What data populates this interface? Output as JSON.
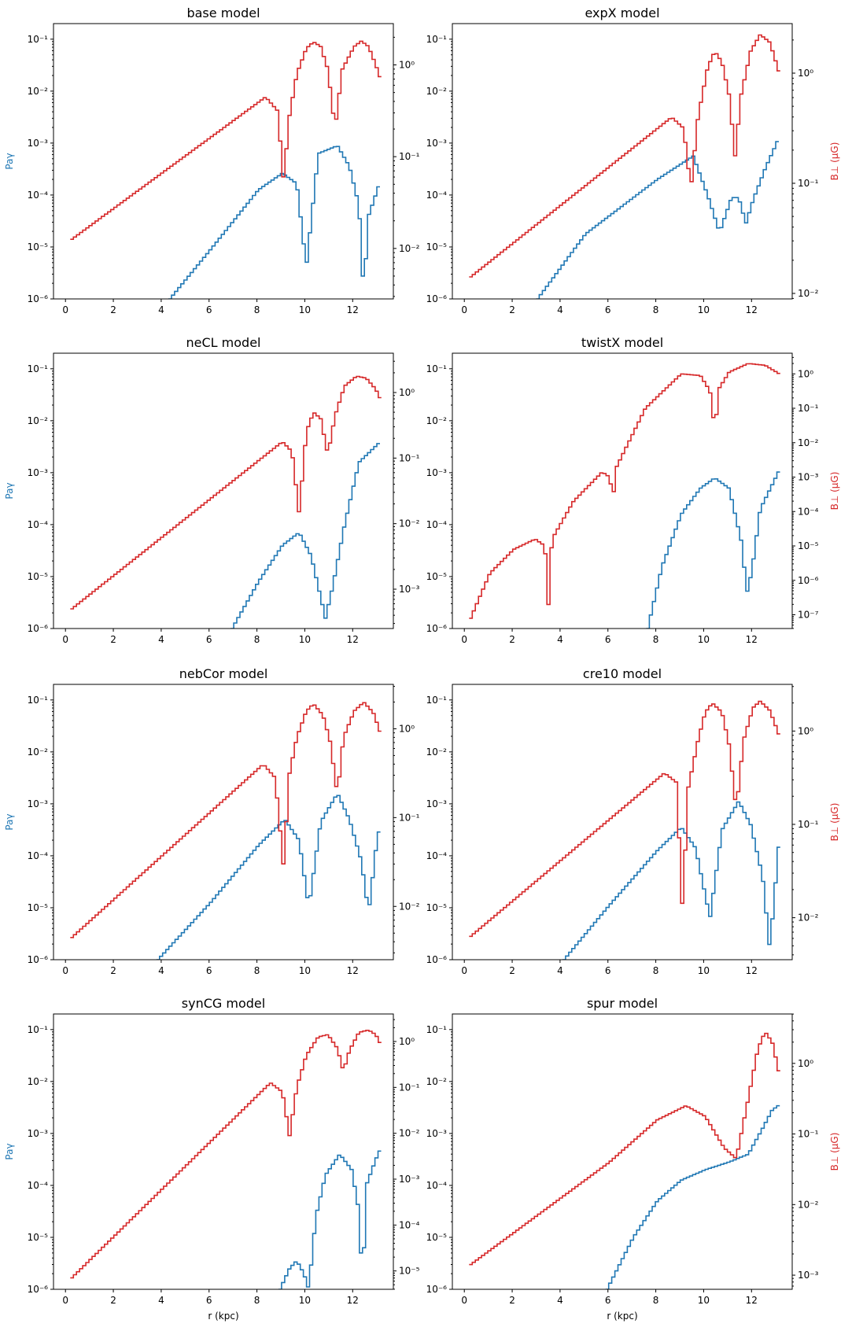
{
  "figure": {
    "xlabel": "r (kpc)",
    "left_ylabel": "P_aγ",
    "right_ylabel": "B_⊥ (μG)",
    "left_color": "#1f77b4",
    "right_color": "#d62728"
  },
  "chart_data": [
    {
      "type": "line",
      "title": "base model",
      "xlabel": "",
      "ylabel": "Paγ",
      "y2label": "",
      "xlim": [
        -0.5,
        13.7
      ],
      "xticks": [
        0,
        2,
        4,
        6,
        8,
        10,
        12
      ],
      "ylim": [
        -6,
        -0.7
      ],
      "yscale": "log",
      "yticks": [
        -6,
        -5,
        -4,
        -3,
        -2,
        -1
      ],
      "y2lim": [
        -2.55,
        0.45
      ],
      "y2scale": "log",
      "y2ticks": [
        -2,
        -1,
        0
      ],
      "series": [
        {
          "axis": "left",
          "color": "#1f77b4",
          "x": [
            4.3,
            6,
            8,
            9.0,
            9.6,
            10,
            10.5,
            11.3,
            11.8,
            12.2,
            12.4,
            12.6,
            13.1
          ],
          "y": [
            -6,
            -5.05,
            -3.9,
            -3.58,
            -3.78,
            -5.38,
            -3.2,
            -3.05,
            -3.45,
            -4.2,
            -5.9,
            -4.4,
            -3.72
          ]
        },
        {
          "axis": "right",
          "color": "#d62728",
          "x": [
            0.2,
            8.3,
            8.8,
            9.05,
            9.3,
            9.6,
            10.0,
            10.3,
            10.6,
            10.9,
            11.2,
            11.5,
            12.0,
            12.3,
            12.6,
            12.9,
            13.1
          ],
          "y": [
            -1.9,
            -0.35,
            -0.5,
            -1.25,
            -0.55,
            -0.1,
            0.18,
            0.25,
            0.2,
            -0.05,
            -0.7,
            -0.05,
            0.2,
            0.26,
            0.2,
            0.0,
            -0.15
          ]
        }
      ]
    },
    {
      "type": "line",
      "title": "expX model",
      "xlabel": "",
      "ylabel": "",
      "y2label": "B⊥ (μG)",
      "xlim": [
        -0.5,
        13.7
      ],
      "xticks": [
        0,
        2,
        4,
        6,
        8,
        10,
        12
      ],
      "ylim": [
        -6,
        -0.7
      ],
      "yscale": "log",
      "yticks": [
        -6,
        -5,
        -4,
        -3,
        -2,
        -1
      ],
      "y2lim": [
        -2.05,
        0.45
      ],
      "y2scale": "log",
      "y2ticks": [
        -2,
        -1,
        0
      ],
      "series": [
        {
          "axis": "left",
          "color": "#1f77b4",
          "x": [
            3.0,
            5,
            8,
            9.5,
            10.1,
            10.6,
            11.1,
            11.4,
            11.7,
            12.0,
            12.5,
            13.1
          ],
          "y": [
            -6,
            -4.75,
            -3.7,
            -3.25,
            -4.0,
            -4.72,
            -4.05,
            -4.05,
            -4.55,
            -4.1,
            -3.5,
            -2.88
          ]
        },
        {
          "axis": "right",
          "color": "#d62728",
          "x": [
            0.2,
            8.6,
            9.1,
            9.4,
            9.7,
            10.1,
            10.4,
            10.7,
            11.0,
            11.25,
            11.5,
            11.9,
            12.3,
            12.7,
            13.1
          ],
          "y": [
            -1.85,
            -0.4,
            -0.5,
            -1.05,
            -0.4,
            0.05,
            0.2,
            0.1,
            -0.2,
            -0.75,
            -0.2,
            0.2,
            0.35,
            0.28,
            0.0
          ]
        }
      ]
    },
    {
      "type": "line",
      "title": "neCL model",
      "xlabel": "",
      "ylabel": "Paγ",
      "y2label": "",
      "xlim": [
        -0.5,
        13.7
      ],
      "xticks": [
        0,
        2,
        4,
        6,
        8,
        10,
        12
      ],
      "ylim": [
        -6,
        -0.7
      ],
      "yscale": "log",
      "yticks": [
        -6,
        -5,
        -4,
        -3,
        -2,
        -1
      ],
      "y2lim": [
        -3.6,
        0.6
      ],
      "y2scale": "log",
      "y2ticks": [
        -3,
        -2,
        -1,
        0
      ],
      "series": [
        {
          "axis": "left",
          "color": "#1f77b4",
          "x": [
            6.9,
            8,
            9,
            9.7,
            10.2,
            10.8,
            11.1,
            11.6,
            12.2,
            13.1
          ],
          "y": [
            -6,
            -5.1,
            -4.4,
            -4.15,
            -4.6,
            -5.8,
            -5.2,
            -4.0,
            -2.8,
            -2.4
          ]
        },
        {
          "axis": "right",
          "color": "#d62728",
          "x": [
            0.2,
            9.0,
            9.4,
            9.7,
            10.0,
            10.3,
            10.6,
            10.9,
            11.2,
            11.6,
            12.1,
            12.5,
            12.9,
            13.1
          ],
          "y": [
            -3.3,
            -0.75,
            -0.9,
            -1.85,
            -0.6,
            -0.3,
            -0.4,
            -0.95,
            -0.35,
            0.1,
            0.25,
            0.22,
            0.05,
            -0.1
          ]
        }
      ]
    },
    {
      "type": "line",
      "title": "twistX model",
      "xlabel": "",
      "ylabel": "",
      "y2label": "B⊥ (μG)",
      "xlim": [
        -0.5,
        13.7
      ],
      "xticks": [
        0,
        2,
        4,
        6,
        8,
        10,
        12
      ],
      "ylim": [
        -6,
        -0.7
      ],
      "yscale": "log",
      "yticks": [
        -6,
        -5,
        -4,
        -3,
        -2,
        -1
      ],
      "y2lim": [
        -7.4,
        0.6
      ],
      "y2scale": "log",
      "y2ticks": [
        -7,
        -6,
        -5,
        -4,
        -3,
        -2,
        -1,
        0
      ],
      "series": [
        {
          "axis": "left",
          "color": "#1f77b4",
          "x": [
            7.6,
            8.2,
            9,
            9.8,
            10.4,
            11.0,
            11.5,
            11.75,
            11.95,
            12.3,
            13.1
          ],
          "y": [
            -6,
            -4.8,
            -3.8,
            -3.3,
            -3.1,
            -3.3,
            -4.3,
            -5.3,
            -4.9,
            -3.7,
            -2.95
          ]
        },
        {
          "axis": "right",
          "color": "#d62728",
          "x": [
            0.2,
            1.0,
            2.0,
            2.9,
            3.3,
            3.45,
            3.6,
            4.5,
            5.7,
            6.0,
            6.15,
            6.3,
            7.5,
            9.0,
            9.8,
            10.2,
            10.4,
            10.6,
            11.0,
            11.8,
            12.5,
            13.1
          ],
          "y": [
            -7.1,
            -5.8,
            -5.1,
            -4.8,
            -5.0,
            -6.7,
            -4.8,
            -3.7,
            -2.85,
            -3.0,
            -3.6,
            -2.7,
            -1.0,
            0.0,
            -0.05,
            -0.5,
            -1.6,
            -0.4,
            0.05,
            0.3,
            0.25,
            0.0
          ]
        }
      ]
    },
    {
      "type": "line",
      "title": "nebCor model",
      "xlabel": "",
      "ylabel": "Paγ",
      "y2label": "",
      "xlim": [
        -0.5,
        13.7
      ],
      "xticks": [
        0,
        2,
        4,
        6,
        8,
        10,
        12
      ],
      "ylim": [
        -6,
        -0.7
      ],
      "yscale": "log",
      "yticks": [
        -6,
        -5,
        -4,
        -3,
        -2,
        -1
      ],
      "y2lim": [
        -2.6,
        0.5
      ],
      "y2scale": "log",
      "y2ticks": [
        -2,
        -1,
        0
      ],
      "series": [
        {
          "axis": "left",
          "color": "#1f77b4",
          "x": [
            3.8,
            6,
            8,
            9.1,
            9.7,
            10.1,
            10.6,
            11.3,
            11.8,
            12.3,
            12.6,
            12.9,
            13.1
          ],
          "y": [
            -6,
            -4.9,
            -3.8,
            -3.3,
            -3.7,
            -5.0,
            -3.35,
            -2.8,
            -3.3,
            -4.1,
            -5.1,
            -3.9,
            -3.35
          ]
        },
        {
          "axis": "right",
          "color": "#d62728",
          "x": [
            0.2,
            8.2,
            8.7,
            9.05,
            9.3,
            9.6,
            10.0,
            10.3,
            10.7,
            11.0,
            11.3,
            11.55,
            12.0,
            12.4,
            12.8,
            13.1
          ],
          "y": [
            -2.35,
            -0.4,
            -0.55,
            -1.55,
            -0.5,
            -0.1,
            0.2,
            0.28,
            0.15,
            -0.15,
            -0.75,
            -0.1,
            0.2,
            0.3,
            0.18,
            -0.05
          ]
        }
      ]
    },
    {
      "type": "line",
      "title": "cre10 model",
      "xlabel": "",
      "ylabel": "",
      "y2label": "B⊥ (μG)",
      "xlim": [
        -0.5,
        13.7
      ],
      "xticks": [
        0,
        2,
        4,
        6,
        8,
        10,
        12
      ],
      "ylim": [
        -6,
        -0.7
      ],
      "yscale": "log",
      "yticks": [
        -6,
        -5,
        -4,
        -3,
        -2,
        -1
      ],
      "y2lim": [
        -2.45,
        0.5
      ],
      "y2scale": "log",
      "y2ticks": [
        -2,
        -1,
        0
      ],
      "series": [
        {
          "axis": "left",
          "color": "#1f77b4",
          "x": [
            4.1,
            6,
            8,
            9.0,
            9.6,
            10.2,
            10.7,
            11.4,
            11.9,
            12.4,
            12.7,
            13.0,
            13.1
          ],
          "y": [
            -6,
            -4.95,
            -3.9,
            -3.45,
            -3.85,
            -5.2,
            -3.5,
            -2.95,
            -3.4,
            -4.4,
            -5.8,
            -4.2,
            -3.68
          ]
        },
        {
          "axis": "right",
          "color": "#d62728",
          "x": [
            0.2,
            8.3,
            8.8,
            9.05,
            9.3,
            9.7,
            10.0,
            10.3,
            10.7,
            11.0,
            11.3,
            11.6,
            12.0,
            12.3,
            12.7,
            13.1
          ],
          "y": [
            -2.2,
            -0.45,
            -0.55,
            -1.9,
            -0.6,
            -0.1,
            0.2,
            0.3,
            0.2,
            -0.15,
            -0.85,
            -0.1,
            0.25,
            0.32,
            0.22,
            -0.05
          ]
        }
      ]
    },
    {
      "type": "line",
      "title": "synCG model",
      "xlabel": "r (kpc)",
      "ylabel": "Paγ",
      "y2label": "",
      "xlim": [
        -0.5,
        13.7
      ],
      "xticks": [
        0,
        2,
        4,
        6,
        8,
        10,
        12
      ],
      "ylim": [
        -6,
        -0.7
      ],
      "yscale": "log",
      "yticks": [
        -6,
        -5,
        -4,
        -3,
        -2,
        -1
      ],
      "y2lim": [
        -5.4,
        0.6
      ],
      "y2scale": "log",
      "y2ticks": [
        -5,
        -4,
        -3,
        -2,
        -1,
        0
      ],
      "series": [
        {
          "axis": "left",
          "color": "#1f77b4",
          "x": [
            8.9,
            9.3,
            9.6,
            9.9,
            10.1,
            10.4,
            10.8,
            11.4,
            11.9,
            12.2,
            12.35,
            12.5,
            12.9,
            13.1
          ],
          "y": [
            -6,
            -5.6,
            -5.45,
            -5.7,
            -6.0,
            -4.6,
            -3.8,
            -3.4,
            -3.7,
            -4.5,
            -6.0,
            -4.0,
            -3.5,
            -3.3
          ]
        },
        {
          "axis": "right",
          "color": "#d62728",
          "x": [
            0.2,
            8.5,
            9.0,
            9.3,
            9.6,
            10.0,
            10.5,
            10.9,
            11.3,
            11.55,
            11.8,
            12.2,
            12.6,
            12.9,
            13.1
          ],
          "y": [
            -5.15,
            -0.9,
            -1.1,
            -2.05,
            -1.0,
            -0.3,
            0.1,
            0.15,
            -0.15,
            -0.65,
            -0.2,
            0.2,
            0.25,
            0.15,
            -0.05
          ]
        }
      ]
    },
    {
      "type": "line",
      "title": "spur model",
      "xlabel": "r (kpc)",
      "ylabel": "",
      "y2label": "B⊥ (μG)",
      "xlim": [
        -0.5,
        13.7
      ],
      "xticks": [
        0,
        2,
        4,
        6,
        8,
        10,
        12
      ],
      "ylim": [
        -6,
        -0.7
      ],
      "yscale": "log",
      "yticks": [
        -6,
        -5,
        -4,
        -3,
        -2,
        -1
      ],
      "y2lim": [
        -3.2,
        0.7
      ],
      "y2scale": "log",
      "y2ticks": [
        -3,
        -2,
        -1,
        0
      ],
      "series": [
        {
          "axis": "left",
          "color": "#1f77b4",
          "x": [
            5.9,
            7,
            8,
            9,
            10,
            11,
            11.8,
            12.4,
            12.8,
            13.1
          ],
          "y": [
            -6,
            -5.0,
            -4.3,
            -3.9,
            -3.7,
            -3.55,
            -3.4,
            -2.9,
            -2.55,
            -2.45
          ]
        },
        {
          "axis": "right",
          "color": "#d62728",
          "x": [
            0.2,
            6,
            8,
            9.2,
            10.0,
            10.8,
            11.3,
            11.8,
            12.2,
            12.5,
            12.8,
            13.1
          ],
          "y": [
            -2.85,
            -1.4,
            -0.8,
            -0.6,
            -0.75,
            -1.2,
            -1.35,
            -0.5,
            0.2,
            0.45,
            0.3,
            -0.15
          ]
        }
      ]
    }
  ]
}
